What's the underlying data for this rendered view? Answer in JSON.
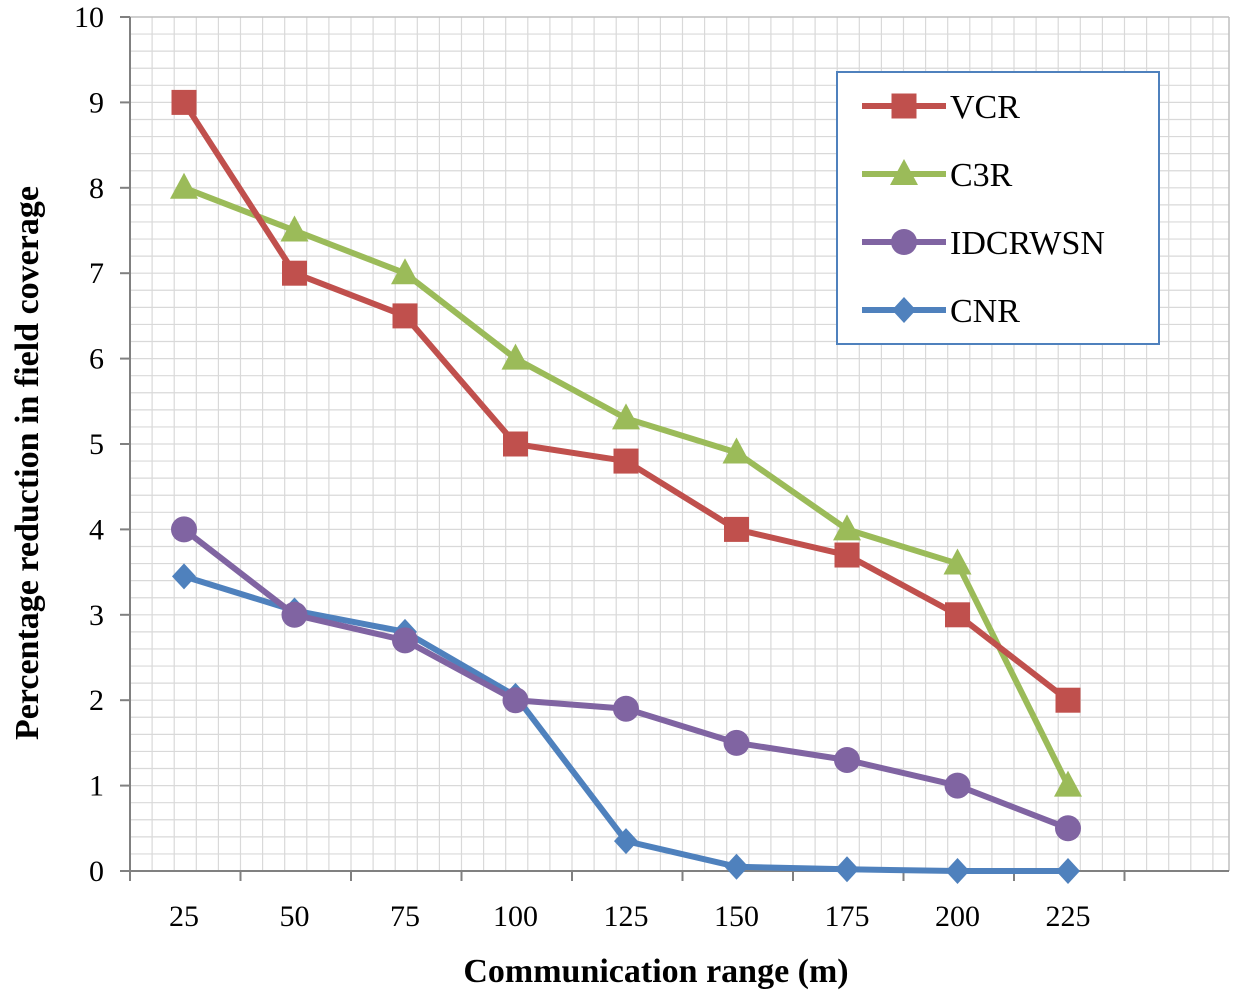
{
  "chart_data": {
    "type": "line",
    "title": "",
    "xlabel": "Communication  range (m)",
    "ylabel": "Percentage reduction in field coverage",
    "categories": [
      "25",
      "50",
      "75",
      "100",
      "125",
      "150",
      "175",
      "200",
      "225"
    ],
    "ylim": [
      0,
      10
    ],
    "yticks": [
      "0",
      "1",
      "2",
      "3",
      "4",
      "5",
      "6",
      "7",
      "8",
      "9",
      "10"
    ],
    "grid": true,
    "legend_position": "top-right",
    "series": [
      {
        "name": "VCR",
        "marker": "square",
        "color": "#C0504D",
        "values": [
          9,
          7,
          6.5,
          5,
          4.8,
          4,
          3.7,
          3,
          2
        ]
      },
      {
        "name": "C3R",
        "marker": "triangle",
        "color": "#9BBB59",
        "values": [
          8,
          7.5,
          7,
          6,
          5.3,
          4.9,
          4,
          3.6,
          1
        ]
      },
      {
        "name": "IDCRWSN",
        "marker": "circle",
        "color": "#8064A2",
        "values": [
          4,
          3,
          2.7,
          2,
          1.9,
          1.5,
          1.3,
          1,
          0.5
        ]
      },
      {
        "name": "CNR",
        "marker": "diamond",
        "color": "#4F81BD",
        "values": [
          3.45,
          3.05,
          2.8,
          2.05,
          0.35,
          0.05,
          0.02,
          0,
          0
        ]
      }
    ]
  }
}
